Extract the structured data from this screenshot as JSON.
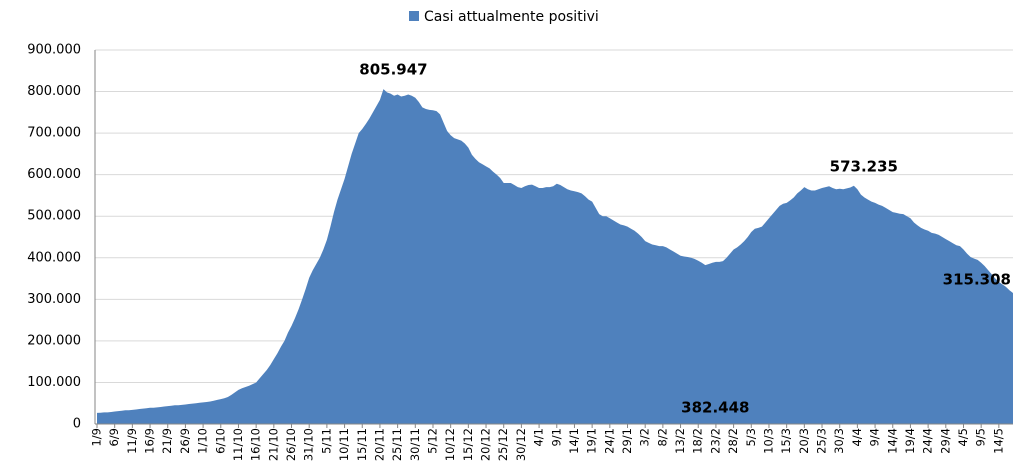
{
  "chart_data": {
    "type": "area",
    "categories": [
      "1/9",
      null,
      null,
      null,
      null,
      "6/9",
      null,
      null,
      null,
      null,
      "11/9",
      null,
      null,
      null,
      null,
      "16/9",
      null,
      null,
      null,
      null,
      "21/9",
      null,
      null,
      null,
      null,
      "26/9",
      null,
      null,
      null,
      null,
      "1/10",
      null,
      null,
      null,
      null,
      "6/10",
      null,
      null,
      null,
      null,
      "11/10",
      null,
      null,
      null,
      null,
      "16/10",
      null,
      null,
      null,
      null,
      "21/10",
      null,
      null,
      null,
      null,
      "26/10",
      null,
      null,
      null,
      null,
      "31/10",
      null,
      null,
      null,
      null,
      "5/11",
      null,
      null,
      null,
      null,
      "10/11",
      null,
      null,
      null,
      null,
      "15/11",
      null,
      null,
      null,
      null,
      "20/11",
      null,
      null,
      null,
      null,
      "25/11",
      null,
      null,
      null,
      null,
      "30/11",
      null,
      null,
      null,
      null,
      "5/12",
      null,
      null,
      null,
      null,
      "10/12",
      null,
      null,
      null,
      null,
      "15/12",
      null,
      null,
      null,
      null,
      "20/12",
      null,
      null,
      null,
      null,
      "25/12",
      null,
      null,
      null,
      null,
      "30/12",
      null,
      null,
      null,
      null,
      "4/1",
      null,
      null,
      null,
      null,
      "9/1",
      null,
      null,
      null,
      null,
      "14/1",
      null,
      null,
      null,
      null,
      "19/1",
      null,
      null,
      null,
      null,
      "24/1",
      null,
      null,
      null,
      null,
      "29/1",
      null,
      null,
      null,
      null,
      "3/2",
      null,
      null,
      null,
      null,
      "8/2",
      null,
      null,
      null,
      null,
      "13/2",
      null,
      null,
      null,
      null,
      "18/2",
      null,
      null,
      null,
      null,
      "23/2",
      null,
      null,
      null,
      null,
      "28/2",
      null,
      null,
      null,
      null,
      "5/3",
      null,
      null,
      null,
      null,
      "10/3",
      null,
      null,
      null,
      null,
      "15/3",
      null,
      null,
      null,
      null,
      "20/3",
      null,
      null,
      null,
      null,
      "25/3",
      null,
      null,
      null,
      null,
      "30/3",
      null,
      null,
      null,
      null,
      "4/4",
      null,
      null,
      null,
      null,
      "9/4",
      null,
      null,
      null,
      null,
      "14/4",
      null,
      null,
      null,
      null,
      "19/4",
      null,
      null,
      null,
      null,
      "24/4",
      null,
      null,
      null,
      null,
      "29/4",
      null,
      null,
      null,
      null,
      "4/5",
      null,
      null,
      null,
      null,
      "9/5",
      null,
      null,
      null,
      null,
      "14/5",
      null,
      null,
      null,
      null
    ],
    "series": [
      {
        "name": "Casi attualmente positivi",
        "color": "#4f81bd",
        "values": [
          26754,
          27000,
          28000,
          28000,
          29000,
          30000,
          31000,
          32000,
          33000,
          33000,
          34000,
          35000,
          36000,
          37000,
          38000,
          39000,
          39000,
          40000,
          41000,
          42000,
          43000,
          44000,
          45000,
          45000,
          46000,
          47000,
          48000,
          49000,
          50000,
          51000,
          52000,
          53000,
          54000,
          56000,
          58000,
          60000,
          62000,
          65000,
          70000,
          76000,
          82000,
          86000,
          89000,
          92000,
          96000,
          100000,
          110000,
          120000,
          130000,
          142000,
          156000,
          170000,
          186000,
          200000,
          220000,
          236000,
          255000,
          276000,
          300000,
          325000,
          352000,
          370000,
          385000,
          400000,
          420000,
          443000,
          475000,
          510000,
          540000,
          565000,
          590000,
          620000,
          650000,
          675000,
          700000,
          710000,
          722000,
          735000,
          750000,
          765000,
          780000,
          805947,
          798000,
          795000,
          790000,
          793000,
          788000,
          790000,
          793000,
          790000,
          785000,
          775000,
          762000,
          758000,
          756000,
          755000,
          753000,
          745000,
          725000,
          705000,
          695000,
          688000,
          685000,
          682000,
          675000,
          665000,
          648000,
          638000,
          630000,
          625000,
          620000,
          615000,
          607000,
          600000,
          592000,
          580000,
          580000,
          580000,
          575000,
          570000,
          568000,
          572000,
          575000,
          576000,
          572000,
          568000,
          568000,
          570000,
          570000,
          572000,
          578000,
          575000,
          570000,
          565000,
          562000,
          560000,
          558000,
          555000,
          548000,
          540000,
          535000,
          520000,
          505000,
          500000,
          500000,
          495000,
          490000,
          485000,
          480000,
          478000,
          475000,
          470000,
          465000,
          458000,
          450000,
          440000,
          436000,
          432000,
          430000,
          428000,
          428000,
          425000,
          420000,
          415000,
          410000,
          405000,
          403000,
          402000,
          400000,
          397000,
          393000,
          388000,
          382448,
          385000,
          388000,
          390000,
          390000,
          392000,
          400000,
          410000,
          420000,
          425000,
          432000,
          440000,
          450000,
          462000,
          470000,
          472000,
          475000,
          485000,
          495000,
          505000,
          515000,
          525000,
          530000,
          532000,
          538000,
          545000,
          555000,
          562000,
          570000,
          565000,
          562000,
          562000,
          565000,
          568000,
          570000,
          572000,
          568000,
          565000,
          566000,
          565000,
          567000,
          569000,
          573235,
          565000,
          552000,
          545000,
          540000,
          535000,
          532000,
          528000,
          525000,
          520000,
          515000,
          510000,
          508000,
          506000,
          505000,
          500000,
          495000,
          485000,
          478000,
          472000,
          468000,
          465000,
          460000,
          458000,
          455000,
          450000,
          445000,
          440000,
          435000,
          430000,
          428000,
          420000,
          410000,
          402000,
          398000,
          395000,
          388000,
          380000,
          370000,
          360000,
          350000,
          342000,
          336000,
          330000,
          322000,
          315308
        ],
        "value_labels": [
          null,
          null,
          null,
          null,
          null,
          null,
          null,
          null,
          null,
          null,
          null,
          null,
          null,
          null,
          null,
          null,
          null,
          null,
          null,
          null,
          null,
          null,
          null,
          null,
          null,
          null,
          null,
          null,
          null,
          null,
          null,
          null,
          null,
          null,
          null,
          null,
          null,
          null,
          null,
          null,
          null,
          null,
          null,
          null,
          null,
          null,
          null,
          null,
          null,
          null,
          null,
          null,
          null,
          null,
          null,
          null,
          null,
          null,
          null,
          null,
          null,
          null,
          null,
          null,
          null,
          null,
          null,
          null,
          null,
          null,
          null,
          null,
          null,
          null,
          null,
          null,
          null,
          null,
          null,
          null,
          null,
          "805.947",
          null,
          null,
          null,
          null,
          null,
          null,
          null,
          null,
          null,
          null,
          null,
          null,
          null,
          null,
          null,
          null,
          null,
          null,
          null,
          null,
          null,
          null,
          null,
          null,
          null,
          null,
          null,
          null,
          null,
          null,
          null,
          null,
          null,
          null,
          null,
          null,
          null,
          null,
          null,
          null,
          null,
          null,
          null,
          null,
          null,
          null,
          null,
          null,
          null,
          null,
          null,
          null,
          null,
          null,
          null,
          null,
          null,
          null,
          null,
          null,
          null,
          null,
          null,
          null,
          null,
          null,
          null,
          null,
          null,
          null,
          null,
          null,
          null,
          null,
          null,
          null,
          null,
          null,
          null,
          null,
          null,
          null,
          null,
          null,
          null,
          null,
          null,
          null,
          null,
          null,
          "382.448",
          null,
          null,
          null,
          null,
          null,
          null,
          null,
          null,
          null,
          null,
          null,
          null,
          null,
          null,
          null,
          null,
          null,
          null,
          null,
          null,
          null,
          null,
          null,
          null,
          null,
          null,
          null,
          null,
          null,
          null,
          null,
          null,
          null,
          null,
          null,
          null,
          null,
          null,
          null,
          null,
          null,
          "573.235",
          null,
          null,
          null,
          null,
          null,
          null,
          null,
          null,
          null,
          null,
          null,
          null,
          null,
          null,
          null,
          null,
          null,
          null,
          null,
          null,
          null,
          null,
          null,
          null,
          null,
          null,
          null,
          null,
          null,
          null,
          null,
          null,
          null,
          null,
          null,
          null,
          null,
          null,
          null,
          null,
          null,
          null,
          null,
          null,
          "315.308"
        ]
      }
    ],
    "ylim": [
      0,
      900000
    ],
    "yticks": [
      0,
      {
        "value": 100000,
        "label": "100.000"
      },
      {
        "value": 200000,
        "label": "200.000"
      },
      {
        "value": 300000,
        "label": "300.000"
      },
      {
        "value": 400000,
        "label": "400.000"
      },
      {
        "value": 500000,
        "label": "500.000"
      },
      {
        "value": 600000,
        "label": "600.000"
      },
      {
        "value": 700000,
        "label": "700.000"
      },
      {
        "value": 800000,
        "label": "800.000"
      },
      {
        "value": 900000,
        "label": "900.000"
      }
    ],
    "grid": true,
    "legend": "top"
  }
}
